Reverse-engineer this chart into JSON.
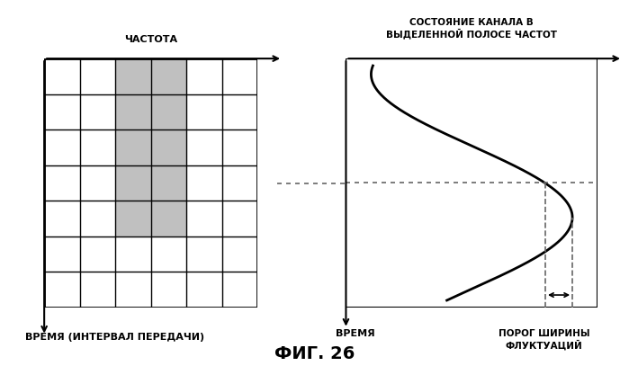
{
  "title": "ФИГ. 26",
  "label_frequency": "ЧАСТОТА",
  "label_time_interval": "ВРЕМЯ (ИНТЕРВАЛ ПЕРЕДАЧИ)",
  "label_time": "ВРЕМЯ",
  "label_channel_state": "СОСТОЯНИЕ КАНАЛА В\nВЫДЕЛЕННОЙ ПОЛОСЕ ЧАСТОТ",
  "label_threshold": "ПОРОГ ШИРИНЫ\nФЛУКТУАЦИЙ",
  "grid_rows": 7,
  "grid_cols": 6,
  "shaded_cols": [
    2,
    3
  ],
  "num_shaded_rows": 5,
  "background_color": "#ffffff",
  "grid_color": "#000000",
  "shaded_color": "#c0c0c0",
  "curve_color": "#000000",
  "dotted_line_color": "#666666",
  "arrow_color": "#000000"
}
